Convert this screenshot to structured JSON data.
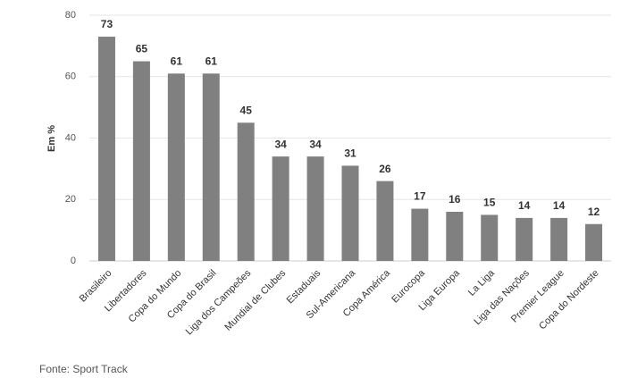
{
  "chart_data": {
    "type": "bar",
    "y_label": "Em %",
    "source": "Fonte: Sport Track",
    "categories": [
      "Brasileiro",
      "Libertadores",
      "Copa do Mundo",
      "Copa do Brasil",
      "Liga dos Campeões",
      "Mundial de Clubes",
      "Estaduais",
      "Sul-Americana",
      "Copa América",
      "Eurocopa",
      "Liga Europa",
      "La Liga",
      "Liga das Nações",
      "Premier League",
      "Copa do Nordeste"
    ],
    "values": [
      73,
      65,
      61,
      61,
      45,
      34,
      34,
      31,
      26,
      17,
      16,
      15,
      14,
      14,
      12
    ],
    "color": "#808080",
    "ylim": [
      0,
      80
    ],
    "yticks": [
      0,
      20,
      40,
      60,
      80
    ],
    "grid": true
  }
}
